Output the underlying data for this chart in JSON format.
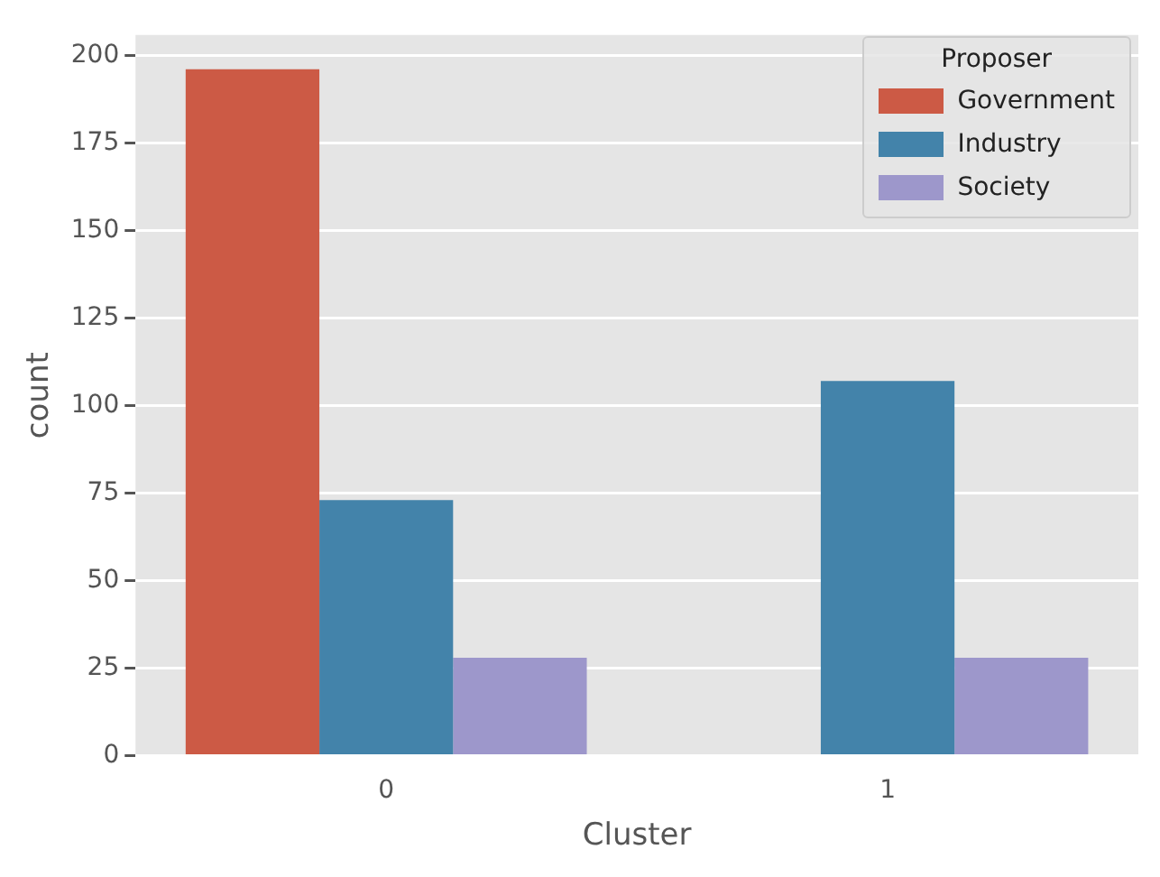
{
  "chart_data": {
    "type": "bar",
    "xlabel": "Cluster",
    "ylabel": "count",
    "legend_title": "Proposer",
    "categories": [
      "0",
      "1"
    ],
    "series": [
      {
        "name": "Government",
        "color": "#cc5a45",
        "values": [
          196,
          0
        ]
      },
      {
        "name": "Industry",
        "color": "#4383aa",
        "values": [
          73,
          107
        ]
      },
      {
        "name": "Society",
        "color": "#9d97cb",
        "values": [
          28,
          28
        ]
      }
    ],
    "ylim": [
      0,
      205.8
    ],
    "yticks": [
      0,
      25,
      50,
      75,
      100,
      125,
      150,
      175,
      200
    ],
    "grid": "y",
    "legend": "top right"
  }
}
